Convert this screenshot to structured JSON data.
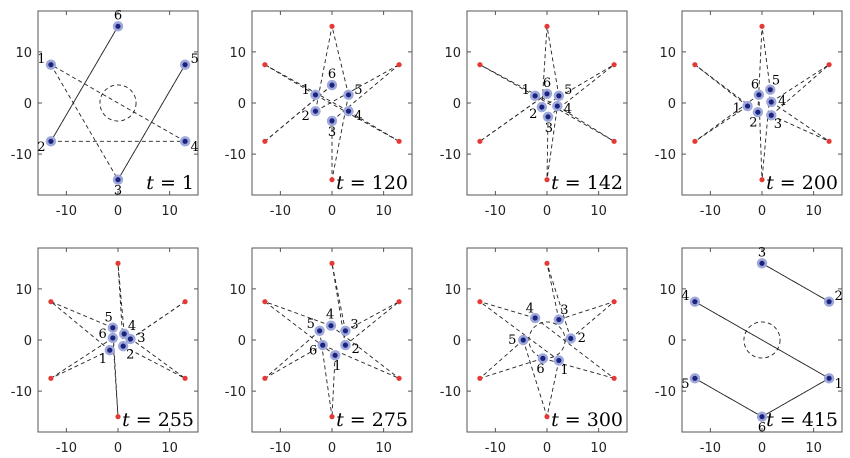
{
  "chart_data": [
    {
      "type": "scatter",
      "title": "",
      "xlabel": "",
      "ylabel": "",
      "xlim": [
        -15.5,
        15.5
      ],
      "ylim": [
        -18,
        18
      ],
      "xticks": [
        "-10",
        "0",
        "10"
      ],
      "yticks": [
        "10",
        "0",
        "-10"
      ],
      "xtick_values": [
        -10,
        0,
        10
      ],
      "ytick_values": [
        10,
        0,
        -10
      ],
      "time_label": {
        "var": "t",
        "eq": " = ",
        "value": "1"
      },
      "show_circle": true,
      "show_targets": false,
      "targets": [
        [
          -13,
          7.5
        ],
        [
          0,
          15
        ],
        [
          13,
          7.5
        ],
        [
          13,
          -7.5
        ],
        [
          0,
          -15
        ],
        [
          -13,
          -7.5
        ]
      ],
      "agents": [
        {
          "label": "1",
          "x": -13,
          "y": 7.5
        },
        {
          "label": "2",
          "x": -13,
          "y": -7.5
        },
        {
          "label": "3",
          "x": 0,
          "y": -15
        },
        {
          "label": "4",
          "x": 13,
          "y": -7.5
        },
        {
          "label": "5",
          "x": 13,
          "y": 7.5
        },
        {
          "label": "6",
          "x": 0,
          "y": 15
        }
      ],
      "links": [
        [
          0,
          4
        ],
        [
          1,
          3
        ],
        [
          2,
          4
        ],
        [
          3,
          0
        ],
        [
          4,
          2
        ],
        [
          5,
          1
        ]
      ]
    },
    {
      "type": "scatter",
      "title": "",
      "xlabel": "",
      "ylabel": "",
      "xlim": [
        -15.5,
        15.5
      ],
      "ylim": [
        -18,
        18
      ],
      "xticks": [
        "-10",
        "0",
        "10"
      ],
      "yticks": [
        "10",
        "0",
        "-10"
      ],
      "xtick_values": [
        -10,
        0,
        10
      ],
      "ytick_values": [
        10,
        0,
        -10
      ],
      "time_label": {
        "var": "t",
        "eq": " = ",
        "value": "120"
      },
      "show_circle": false,
      "show_targets": true,
      "targets": [
        [
          -13,
          7.5
        ],
        [
          0,
          15
        ],
        [
          13,
          7.5
        ],
        [
          13,
          -7.5
        ],
        [
          0,
          -15
        ],
        [
          -13,
          -7.5
        ]
      ],
      "agents": [
        {
          "label": "1",
          "x": -3.2,
          "y": 1.6
        },
        {
          "label": "2",
          "x": -3.2,
          "y": -1.6
        },
        {
          "label": "3",
          "x": 0,
          "y": -3.5
        },
        {
          "label": "4",
          "x": 3.2,
          "y": -1.6
        },
        {
          "label": "5",
          "x": 3.2,
          "y": 1.6
        },
        {
          "label": "6",
          "x": 0,
          "y": 3.5
        }
      ],
      "links": [
        [
          0,
          3
        ],
        [
          1,
          2
        ],
        [
          2,
          4
        ],
        [
          3,
          0
        ],
        [
          4,
          1
        ],
        [
          5,
          5
        ]
      ]
    },
    {
      "type": "scatter",
      "title": "",
      "xlabel": "",
      "ylabel": "",
      "xlim": [
        -15.5,
        15.5
      ],
      "ylim": [
        -18,
        18
      ],
      "xticks": [
        "-10",
        "0",
        "10"
      ],
      "yticks": [
        "10",
        "0",
        "-10"
      ],
      "xtick_values": [
        -10,
        0,
        10
      ],
      "ytick_values": [
        10,
        0,
        -10
      ],
      "time_label": {
        "var": "t",
        "eq": " = ",
        "value": "142"
      },
      "show_circle": false,
      "show_targets": true,
      "targets": [
        [
          -13,
          7.5
        ],
        [
          0,
          15
        ],
        [
          13,
          7.5
        ],
        [
          13,
          -7.5
        ],
        [
          0,
          -15
        ],
        [
          -13,
          -7.5
        ]
      ],
      "agents": [
        {
          "label": "1",
          "x": -2.3,
          "y": 1.4
        },
        {
          "label": "2",
          "x": -1.0,
          "y": -0.8
        },
        {
          "label": "3",
          "x": 0.2,
          "y": -2.7
        },
        {
          "label": "4",
          "x": 2.0,
          "y": -0.6
        },
        {
          "label": "5",
          "x": 2.3,
          "y": 1.4
        },
        {
          "label": "6",
          "x": 0,
          "y": 1.8
        }
      ],
      "links": [
        [
          0,
          3
        ],
        [
          1,
          2
        ],
        [
          2,
          4
        ],
        [
          3,
          0
        ],
        [
          4,
          1
        ],
        [
          5,
          5
        ]
      ]
    },
    {
      "type": "scatter",
      "title": "",
      "xlabel": "",
      "ylabel": "",
      "xlim": [
        -15.5,
        15.5
      ],
      "ylim": [
        -18,
        18
      ],
      "xticks": [
        "-10",
        "0",
        "10"
      ],
      "yticks": [
        "10",
        "0",
        "-10"
      ],
      "xtick_values": [
        -10,
        0,
        10
      ],
      "ytick_values": [
        10,
        0,
        -10
      ],
      "time_label": {
        "var": "t",
        "eq": " = ",
        "value": "200"
      },
      "show_circle": false,
      "show_targets": true,
      "targets": [
        [
          -13,
          7.5
        ],
        [
          0,
          15
        ],
        [
          13,
          7.5
        ],
        [
          13,
          -7.5
        ],
        [
          0,
          -15
        ],
        [
          -13,
          -7.5
        ]
      ],
      "agents": [
        {
          "label": "1",
          "x": -2.8,
          "y": -0.6
        },
        {
          "label": "2",
          "x": -0.8,
          "y": -1.8
        },
        {
          "label": "3",
          "x": 1.8,
          "y": -2.4
        },
        {
          "label": "4",
          "x": 1.8,
          "y": 0.2
        },
        {
          "label": "5",
          "x": 1.6,
          "y": 2.6
        },
        {
          "label": "6",
          "x": -0.6,
          "y": 1.6
        }
      ],
      "links": [
        [
          0,
          5
        ],
        [
          1,
          0
        ],
        [
          2,
          3
        ],
        [
          3,
          2
        ],
        [
          4,
          1
        ],
        [
          5,
          4
        ]
      ]
    },
    {
      "type": "scatter",
      "title": "",
      "xlabel": "",
      "ylabel": "",
      "xlim": [
        -15.5,
        15.5
      ],
      "ylim": [
        -18,
        18
      ],
      "xticks": [
        "-10",
        "0",
        "10"
      ],
      "yticks": [
        "10",
        "0",
        "-10"
      ],
      "xtick_values": [
        -10,
        0,
        10
      ],
      "ytick_values": [
        10,
        0,
        -10
      ],
      "time_label": {
        "var": "t",
        "eq": " = ",
        "value": "255"
      },
      "show_circle": false,
      "show_targets": true,
      "targets": [
        [
          -13,
          7.5
        ],
        [
          0,
          15
        ],
        [
          13,
          7.5
        ],
        [
          13,
          -7.5
        ],
        [
          0,
          -15
        ],
        [
          -13,
          -7.5
        ]
      ],
      "agents": [
        {
          "label": "1",
          "x": -1.6,
          "y": -2.0
        },
        {
          "label": "2",
          "x": 1.0,
          "y": -1.2
        },
        {
          "label": "3",
          "x": 2.4,
          "y": 0.2
        },
        {
          "label": "4",
          "x": 1.2,
          "y": 1.2
        },
        {
          "label": "5",
          "x": -1.0,
          "y": 2.4
        },
        {
          "label": "6",
          "x": -1.0,
          "y": 0.4
        }
      ],
      "links": [
        [
          0,
          5
        ],
        [
          1,
          3
        ],
        [
          2,
          2
        ],
        [
          3,
          1
        ],
        [
          4,
          0
        ],
        [
          5,
          4
        ]
      ]
    },
    {
      "type": "scatter",
      "title": "",
      "xlabel": "",
      "ylabel": "",
      "xlim": [
        -15.5,
        15.5
      ],
      "ylim": [
        -18,
        18
      ],
      "xticks": [
        "-10",
        "0",
        "10"
      ],
      "yticks": [
        "10",
        "0",
        "-10"
      ],
      "xtick_values": [
        -10,
        0,
        10
      ],
      "ytick_values": [
        10,
        0,
        -10
      ],
      "time_label": {
        "var": "t",
        "eq": " = ",
        "value": "275"
      },
      "show_circle": false,
      "show_targets": true,
      "targets": [
        [
          -13,
          7.5
        ],
        [
          0,
          15
        ],
        [
          13,
          7.5
        ],
        [
          13,
          -7.5
        ],
        [
          0,
          -15
        ],
        [
          -13,
          -7.5
        ]
      ],
      "agents": [
        {
          "label": "1",
          "x": 0.6,
          "y": -3.0
        },
        {
          "label": "2",
          "x": 2.6,
          "y": -1.0
        },
        {
          "label": "3",
          "x": 2.6,
          "y": 1.8
        },
        {
          "label": "4",
          "x": -0.2,
          "y": 2.8
        },
        {
          "label": "5",
          "x": -2.4,
          "y": 1.8
        },
        {
          "label": "6",
          "x": -1.8,
          "y": -1.0
        }
      ],
      "links": [
        [
          0,
          4
        ],
        [
          1,
          2
        ],
        [
          2,
          1
        ],
        [
          3,
          0
        ],
        [
          4,
          5
        ],
        [
          5,
          3
        ]
      ]
    },
    {
      "type": "scatter",
      "title": "",
      "xlabel": "",
      "ylabel": "",
      "xlim": [
        -15.5,
        15.5
      ],
      "ylim": [
        -18,
        18
      ],
      "xticks": [
        "-10",
        "0",
        "10"
      ],
      "yticks": [
        "10",
        "0",
        "-10"
      ],
      "xtick_values": [
        -10,
        0,
        10
      ],
      "ytick_values": [
        10,
        0,
        -10
      ],
      "time_label": {
        "var": "t",
        "eq": " = ",
        "value": "300"
      },
      "show_circle": true,
      "show_targets": true,
      "targets": [
        [
          -13,
          7.5
        ],
        [
          0,
          15
        ],
        [
          13,
          7.5
        ],
        [
          13,
          -7.5
        ],
        [
          0,
          -15
        ],
        [
          -13,
          -7.5
        ]
      ],
      "agents": [
        {
          "label": "1",
          "x": 2.3,
          "y": -4.0
        },
        {
          "label": "2",
          "x": 4.6,
          "y": 0.3
        },
        {
          "label": "3",
          "x": 2.3,
          "y": 4.0
        },
        {
          "label": "4",
          "x": -2.3,
          "y": 4.3
        },
        {
          "label": "5",
          "x": -4.6,
          "y": 0
        },
        {
          "label": "6",
          "x": -0.8,
          "y": -3.6
        }
      ],
      "links": [
        [
          0,
          4
        ],
        [
          1,
          2
        ],
        [
          2,
          1
        ],
        [
          3,
          0
        ],
        [
          4,
          5
        ],
        [
          5,
          3
        ]
      ]
    },
    {
      "type": "scatter",
      "title": "",
      "xlabel": "",
      "ylabel": "",
      "xlim": [
        -15.5,
        15.5
      ],
      "ylim": [
        -18,
        18
      ],
      "xticks": [
        "-10",
        "0",
        "10"
      ],
      "yticks": [
        "10",
        "0",
        "-10"
      ],
      "xtick_values": [
        -10,
        0,
        10
      ],
      "ytick_values": [
        10,
        0,
        -10
      ],
      "time_label": {
        "var": "t",
        "eq": " = ",
        "value": "415"
      },
      "show_circle": true,
      "show_targets": false,
      "targets": [
        [
          -13,
          7.5
        ],
        [
          0,
          15
        ],
        [
          13,
          7.5
        ],
        [
          13,
          -7.5
        ],
        [
          0,
          -15
        ],
        [
          -13,
          -7.5
        ]
      ],
      "agents": [
        {
          "label": "1",
          "x": 13,
          "y": -7.5
        },
        {
          "label": "2",
          "x": 13,
          "y": 7.5
        },
        {
          "label": "3",
          "x": 0,
          "y": 15
        },
        {
          "label": "4",
          "x": -13,
          "y": 7.5
        },
        {
          "label": "5",
          "x": -13,
          "y": -7.5
        },
        {
          "label": "6",
          "x": 0,
          "y": -15
        }
      ],
      "links": [
        [
          0,
          4
        ],
        [
          1,
          2
        ],
        [
          2,
          1
        ],
        [
          3,
          0
        ],
        [
          4,
          5
        ],
        [
          5,
          3
        ]
      ]
    }
  ],
  "colors": {
    "agent_fill": "#1a237e",
    "agent_halo": "#9fa8da",
    "target": "#e53935",
    "link": "#222222",
    "frame": "#555555"
  }
}
